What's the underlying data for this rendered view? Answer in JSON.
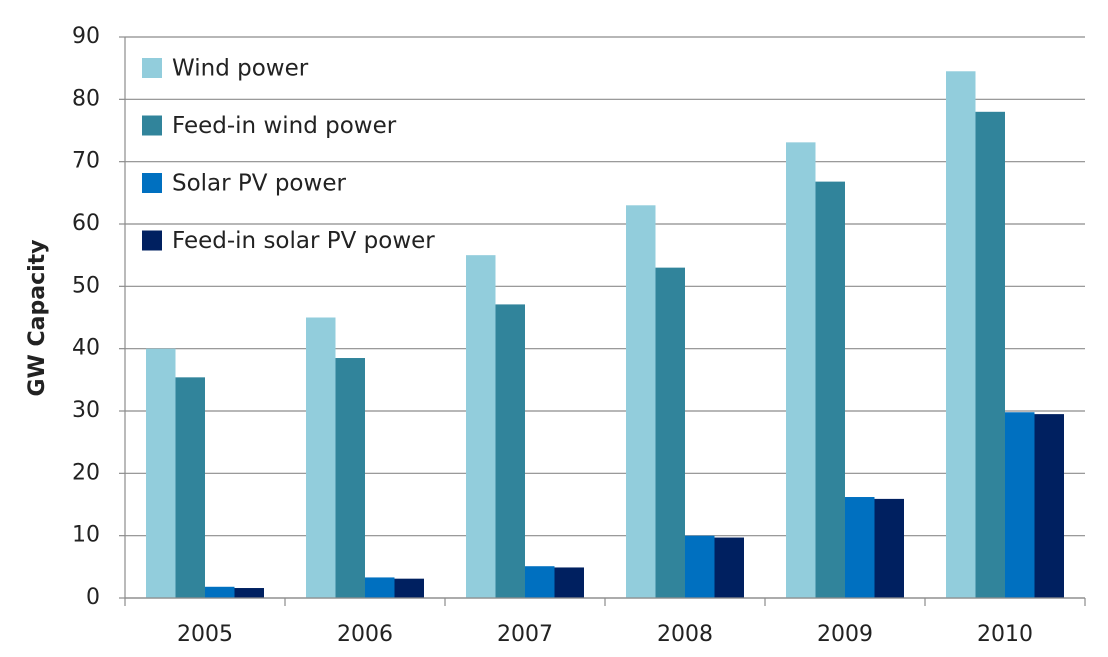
{
  "chart_data": {
    "type": "bar",
    "y_label": "GW Capacity",
    "categories": [
      "2005",
      "2006",
      "2007",
      "2008",
      "2009",
      "2010"
    ],
    "series": [
      {
        "name": "Wind power",
        "color": "#92cddc",
        "values": [
          40,
          45,
          55,
          63,
          73.1,
          84.5
        ]
      },
      {
        "name": "Feed-in wind power",
        "color": "#31849b",
        "values": [
          35.4,
          38.5,
          47.1,
          53,
          66.8,
          78
        ]
      },
      {
        "name": "Solar PV power",
        "color": "#0070c0",
        "values": [
          1.8,
          3.3,
          5.1,
          10,
          16.2,
          29.8
        ]
      },
      {
        "name": "Feed-in solar PV power",
        "color": "#002060",
        "values": [
          1.6,
          3.1,
          4.9,
          9.7,
          15.9,
          29.5
        ]
      }
    ],
    "ylim": [
      0,
      90
    ],
    "yticks": [
      0,
      10,
      20,
      30,
      40,
      50,
      60,
      70,
      80,
      90
    ],
    "grid": true,
    "legend": "top-left"
  }
}
